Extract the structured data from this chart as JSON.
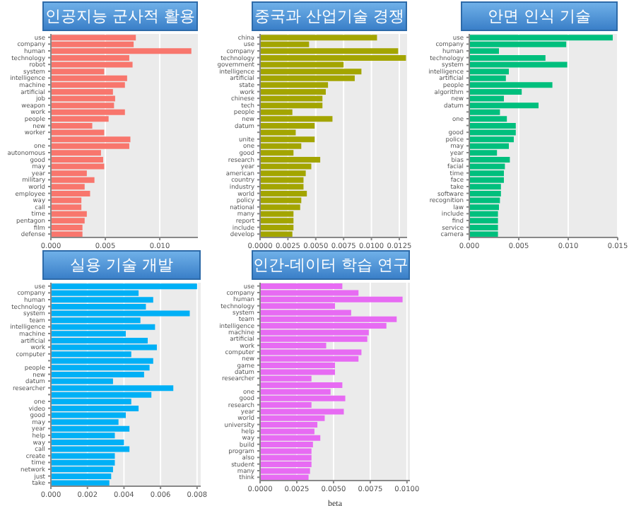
{
  "chart_data": [
    {
      "type": "bar",
      "orientation": "horizontal",
      "title": "인공지능 군사적 활용",
      "grid": "x",
      "color": "#f8766d",
      "categories": [
        "use",
        "company",
        "human",
        "technology",
        "robot",
        "system",
        "intelligence",
        "machine",
        "artificial",
        "job",
        "weapon",
        "work",
        "people",
        "new",
        "worker",
        null,
        "one",
        "autonomous",
        "good",
        "may",
        "year",
        "military",
        "world",
        "employee",
        "way",
        "call",
        "time",
        "pentagon",
        "film",
        "defense"
      ],
      "values": [
        0.0078,
        0.0076,
        0.0129,
        0.0072,
        0.0075,
        0.0049,
        0.007,
        0.0068,
        0.0057,
        0.0059,
        0.0058,
        0.0068,
        0.0053,
        0.0038,
        0.0049,
        0.0073,
        0.0072,
        0.0046,
        0.0048,
        0.0049,
        0.0033,
        0.004,
        0.0031,
        0.0036,
        0.0028,
        0.0028,
        0.0033,
        0.0031,
        0.0029,
        0.0029
      ],
      "xlim": [
        0,
        0.0135
      ],
      "xticks": [
        {
          "value": 0,
          "label": "0.000"
        },
        {
          "value": 0.005,
          "label": "0.005"
        },
        {
          "value": 0.01,
          "label": "0.010"
        }
      ]
    },
    {
      "type": "bar",
      "orientation": "horizontal",
      "title": "중국과 산업기술 경쟁",
      "grid": "x",
      "color": "#a3a500",
      "categories": [
        "china",
        "use",
        "company",
        "technology",
        "government",
        "intelligence",
        "artificial",
        "state",
        "work",
        "chinese",
        "tech",
        "people",
        "new",
        "datum",
        null,
        "unite",
        "one",
        "good",
        "research",
        "year",
        "american",
        "country",
        "industry",
        "world",
        "policy",
        "national",
        "many",
        "report",
        "include",
        "develop"
      ],
      "values": [
        0.0105,
        0.0044,
        0.0124,
        0.0131,
        0.0075,
        0.0091,
        0.0085,
        0.0061,
        0.0059,
        0.0056,
        0.0056,
        0.0029,
        0.0065,
        0.0049,
        0.0032,
        0.0049,
        0.0037,
        0.003,
        0.0054,
        0.0046,
        0.0041,
        0.0039,
        0.0039,
        0.0042,
        0.0037,
        0.0036,
        0.003,
        0.003,
        0.003,
        0.0029
      ],
      "xlim": [
        0,
        0.0132
      ],
      "xticks": [
        {
          "value": 0,
          "label": "0.0000"
        },
        {
          "value": 0.0025,
          "label": "0.0025"
        },
        {
          "value": 0.005,
          "label": "0.0050"
        },
        {
          "value": 0.0075,
          "label": "0.0075"
        },
        {
          "value": 0.01,
          "label": "0.0100"
        },
        {
          "value": 0.0125,
          "label": "0.0125"
        }
      ]
    },
    {
      "type": "bar",
      "orientation": "horizontal",
      "title": "안면 인식 기술",
      "grid": "x",
      "color": "#00bf7d",
      "categories": [
        "use",
        "company",
        "human",
        "technology",
        "system",
        "intelligence",
        "artificial",
        "people",
        "algorithm",
        "new",
        "datum",
        null,
        "one",
        null,
        "good",
        "police",
        "may",
        "year",
        "bias",
        "facial",
        "time",
        "face",
        "take",
        "software",
        "recognition",
        "law",
        "include",
        "find",
        "service",
        "camera"
      ],
      "values": [
        0.0145,
        0.0098,
        0.003,
        0.0077,
        0.0099,
        0.004,
        0.0037,
        0.0084,
        0.0053,
        0.0035,
        0.007,
        0.0031,
        0.0038,
        0.0047,
        0.0047,
        0.0045,
        0.004,
        0.0028,
        0.0041,
        0.0036,
        0.0035,
        0.0035,
        0.0032,
        0.0032,
        0.0031,
        0.003,
        0.0029,
        0.0029,
        0.0029,
        0.0029
      ],
      "xlim": [
        0,
        0.015
      ],
      "xticks": [
        {
          "value": 0,
          "label": "0.000"
        },
        {
          "value": 0.005,
          "label": "0.005"
        },
        {
          "value": 0.01,
          "label": "0.010"
        },
        {
          "value": 0.015,
          "label": "0.015"
        }
      ]
    },
    {
      "type": "bar",
      "orientation": "horizontal",
      "title": "실용 기술 개발",
      "grid": "x",
      "color": "#00b0f6",
      "categories": [
        "use",
        "company",
        "human",
        "technology",
        "system",
        "team",
        "intelligence",
        "machine",
        "artificial",
        "work",
        "computer",
        null,
        "people",
        "new",
        "datum",
        "researcher",
        null,
        "one",
        "video",
        "good",
        "may",
        "year",
        "help",
        "way",
        "call",
        "create",
        "time",
        "network",
        "just",
        "take"
      ],
      "values": [
        0.008,
        0.0048,
        0.0056,
        0.0052,
        0.0076,
        0.0049,
        0.0057,
        0.0041,
        0.0053,
        0.0058,
        0.0044,
        0.0056,
        0.0054,
        0.0051,
        0.0034,
        0.0067,
        0.0055,
        0.0044,
        0.0048,
        0.0041,
        0.0037,
        0.0043,
        0.0035,
        0.004,
        0.0043,
        0.0035,
        0.0035,
        0.0034,
        0.0033,
        0.0032
      ],
      "xlim": [
        0,
        0.0082
      ],
      "xticks": [
        {
          "value": 0,
          "label": "0.000"
        },
        {
          "value": 0.002,
          "label": "0.002"
        },
        {
          "value": 0.004,
          "label": "0.004"
        },
        {
          "value": 0.006,
          "label": "0.006"
        },
        {
          "value": 0.008,
          "label": "0.008"
        }
      ]
    },
    {
      "type": "bar",
      "orientation": "horizontal",
      "title": "인간-데이터 학습 연구",
      "xlabel": "beta",
      "grid": "x",
      "color": "#e76bf3",
      "categories": [
        "use",
        "company",
        "human",
        "technology",
        "system",
        "team",
        "intelligence",
        "machine",
        "artificial",
        "work",
        "computer",
        "new",
        "game",
        "datum",
        "researcher",
        null,
        "one",
        "good",
        "research",
        "year",
        "world",
        "university",
        "help",
        "way",
        "build",
        "program",
        "also",
        "student",
        "many",
        "think"
      ],
      "values": [
        0.0056,
        0.0067,
        0.0097,
        0.0051,
        0.0062,
        0.0093,
        0.0086,
        0.0074,
        0.0073,
        0.0045,
        0.0069,
        0.0067,
        0.0051,
        0.0051,
        0.0035,
        0.0056,
        0.0048,
        0.0058,
        0.0035,
        0.0057,
        0.0044,
        0.0039,
        0.0037,
        0.0041,
        0.0036,
        0.0035,
        0.0035,
        0.0035,
        0.0034,
        0.0033
      ],
      "xlim": [
        0,
        0.0102
      ],
      "xticks": [
        {
          "value": 0,
          "label": "0.0000"
        },
        {
          "value": 0.0025,
          "label": "0.0025"
        },
        {
          "value": 0.005,
          "label": "0.0050"
        },
        {
          "value": 0.0075,
          "label": "0.0075"
        },
        {
          "value": 0.01,
          "label": "0.0100"
        }
      ]
    }
  ]
}
